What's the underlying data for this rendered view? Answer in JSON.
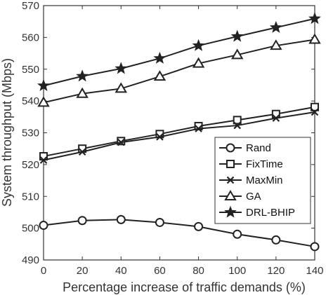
{
  "chart_data": {
    "type": "line",
    "title": "",
    "xlabel": "Percentage increase of traffic demands (%)",
    "ylabel": "System throughput (Mbps)",
    "x": [
      0,
      20,
      40,
      60,
      80,
      100,
      120,
      140
    ],
    "xlim": [
      0,
      140
    ],
    "ylim": [
      490,
      570
    ],
    "xticks": [
      "0",
      "20",
      "40",
      "60",
      "80",
      "100",
      "120",
      "140"
    ],
    "yticks": [
      "490",
      "500",
      "510",
      "520",
      "530",
      "540",
      "550",
      "560",
      "570"
    ],
    "grid": false,
    "legend_position": "lower-right",
    "series": [
      {
        "name": "Rand",
        "marker": "circle",
        "values": [
          500.9,
          502.4,
          502.7,
          501.8,
          500.5,
          498.1,
          496.3,
          494.2
        ]
      },
      {
        "name": "FixTime",
        "marker": "square",
        "values": [
          522.6,
          525.0,
          527.4,
          529.6,
          532.1,
          534.0,
          535.9,
          538.1
        ]
      },
      {
        "name": "MaxMin",
        "marker": "x",
        "values": [
          521.4,
          524.0,
          527.0,
          528.7,
          531.3,
          532.3,
          534.6,
          536.5
        ]
      },
      {
        "name": "GA",
        "marker": "triangle",
        "values": [
          539.5,
          542.3,
          543.9,
          547.7,
          551.8,
          554.5,
          557.4,
          559.3
        ]
      },
      {
        "name": "DRL-BHIP",
        "marker": "star",
        "values": [
          544.8,
          547.8,
          550.2,
          553.4,
          557.4,
          560.3,
          563.1,
          565.9
        ]
      }
    ],
    "colors": {
      "line": "#222222",
      "axis": "#333333"
    }
  }
}
